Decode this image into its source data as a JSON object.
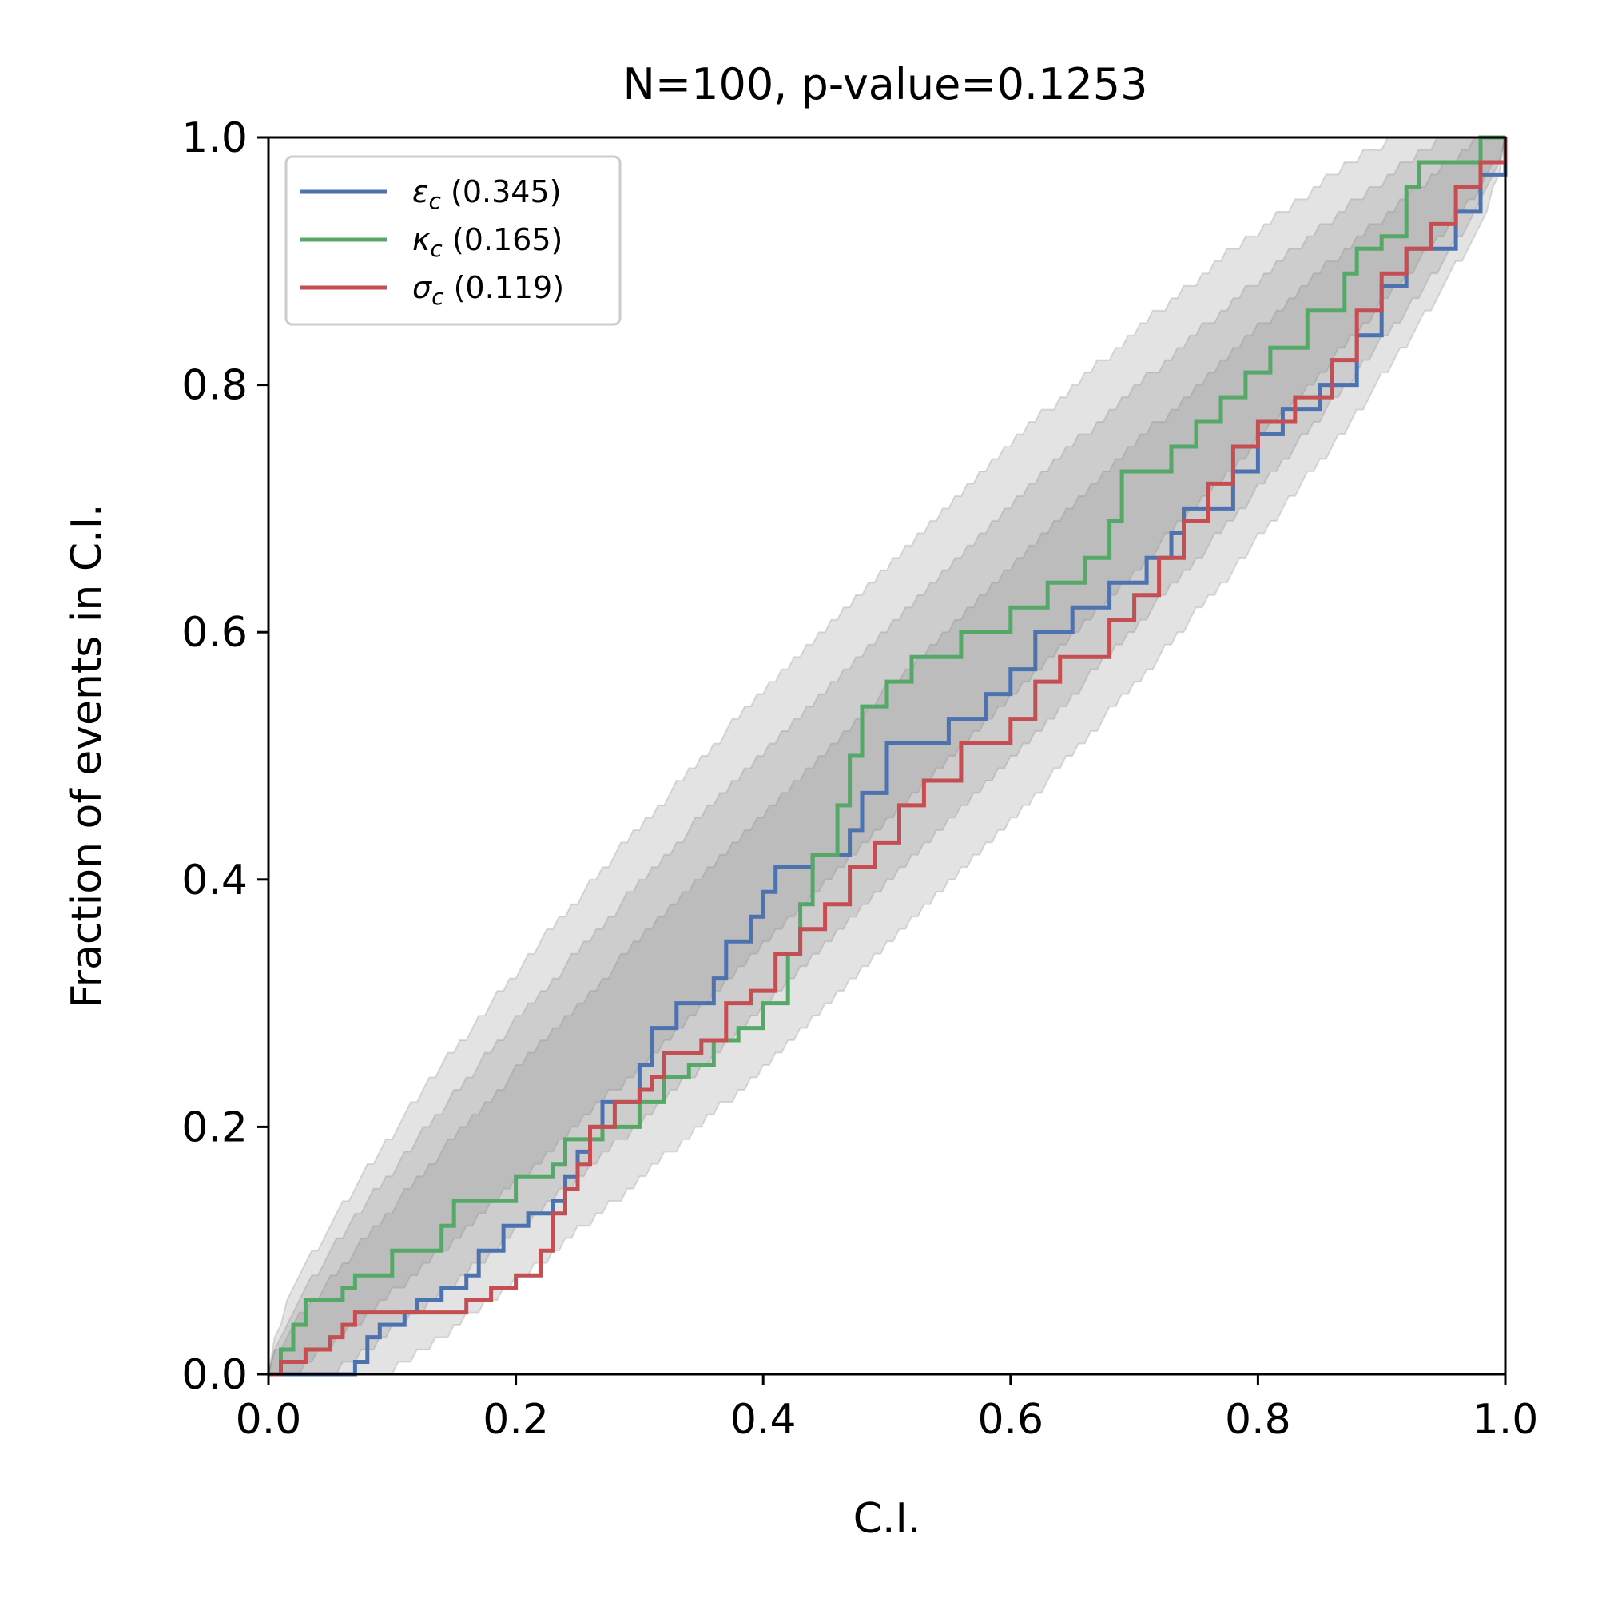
{
  "chart_data": {
    "type": "line",
    "title": "N=100, p-value=0.1253",
    "xlabel": "C.I.",
    "ylabel": "Fraction of events in C.I.",
    "xlim": [
      0.0,
      1.0
    ],
    "ylim": [
      0.0,
      1.0
    ],
    "xticks": [
      "0.0",
      "0.2",
      "0.4",
      "0.6",
      "0.8",
      "1.0"
    ],
    "yticks": [
      "0.0",
      "0.2",
      "0.4",
      "0.6",
      "0.8",
      "1.0"
    ],
    "grid": false,
    "legend_position": "upper-left",
    "bands": {
      "description_levels": [
        "1-sigma",
        "2-sigma",
        "3-sigma"
      ],
      "color": "#808080"
    },
    "series": [
      {
        "name": "ε_c (0.345)",
        "label_symbol": "ε",
        "label_subscript": "c",
        "label_value": "(0.345)",
        "color": "#4c72b0",
        "points": [
          [
            0.0,
            0.0
          ],
          [
            0.07,
            0.01
          ],
          [
            0.08,
            0.03
          ],
          [
            0.09,
            0.04
          ],
          [
            0.11,
            0.05
          ],
          [
            0.12,
            0.06
          ],
          [
            0.14,
            0.07
          ],
          [
            0.16,
            0.08
          ],
          [
            0.17,
            0.1
          ],
          [
            0.19,
            0.12
          ],
          [
            0.21,
            0.13
          ],
          [
            0.23,
            0.14
          ],
          [
            0.24,
            0.16
          ],
          [
            0.25,
            0.18
          ],
          [
            0.26,
            0.2
          ],
          [
            0.27,
            0.22
          ],
          [
            0.3,
            0.25
          ],
          [
            0.31,
            0.28
          ],
          [
            0.33,
            0.3
          ],
          [
            0.36,
            0.32
          ],
          [
            0.37,
            0.35
          ],
          [
            0.39,
            0.37
          ],
          [
            0.4,
            0.39
          ],
          [
            0.41,
            0.41
          ],
          [
            0.44,
            0.42
          ],
          [
            0.47,
            0.44
          ],
          [
            0.48,
            0.47
          ],
          [
            0.5,
            0.51
          ],
          [
            0.55,
            0.53
          ],
          [
            0.58,
            0.55
          ],
          [
            0.6,
            0.57
          ],
          [
            0.62,
            0.6
          ],
          [
            0.65,
            0.62
          ],
          [
            0.68,
            0.64
          ],
          [
            0.71,
            0.66
          ],
          [
            0.73,
            0.68
          ],
          [
            0.74,
            0.7
          ],
          [
            0.78,
            0.73
          ],
          [
            0.8,
            0.76
          ],
          [
            0.82,
            0.78
          ],
          [
            0.85,
            0.8
          ],
          [
            0.88,
            0.84
          ],
          [
            0.9,
            0.88
          ],
          [
            0.92,
            0.91
          ],
          [
            0.96,
            0.94
          ],
          [
            0.98,
            0.97
          ],
          [
            1.0,
            1.0
          ]
        ]
      },
      {
        "name": "κ_c (0.165)",
        "label_symbol": "κ",
        "label_subscript": "c",
        "label_value": "(0.165)",
        "color": "#55a868",
        "points": [
          [
            0.0,
            0.0
          ],
          [
            0.01,
            0.02
          ],
          [
            0.02,
            0.04
          ],
          [
            0.03,
            0.06
          ],
          [
            0.06,
            0.07
          ],
          [
            0.07,
            0.08
          ],
          [
            0.1,
            0.1
          ],
          [
            0.14,
            0.12
          ],
          [
            0.15,
            0.14
          ],
          [
            0.2,
            0.16
          ],
          [
            0.23,
            0.17
          ],
          [
            0.24,
            0.19
          ],
          [
            0.26,
            0.19
          ],
          [
            0.27,
            0.2
          ],
          [
            0.3,
            0.22
          ],
          [
            0.32,
            0.24
          ],
          [
            0.34,
            0.25
          ],
          [
            0.36,
            0.27
          ],
          [
            0.38,
            0.28
          ],
          [
            0.4,
            0.3
          ],
          [
            0.42,
            0.34
          ],
          [
            0.43,
            0.38
          ],
          [
            0.44,
            0.42
          ],
          [
            0.46,
            0.46
          ],
          [
            0.47,
            0.5
          ],
          [
            0.48,
            0.54
          ],
          [
            0.5,
            0.56
          ],
          [
            0.52,
            0.58
          ],
          [
            0.56,
            0.6
          ],
          [
            0.6,
            0.62
          ],
          [
            0.63,
            0.64
          ],
          [
            0.66,
            0.66
          ],
          [
            0.68,
            0.69
          ],
          [
            0.69,
            0.73
          ],
          [
            0.73,
            0.75
          ],
          [
            0.75,
            0.77
          ],
          [
            0.77,
            0.79
          ],
          [
            0.79,
            0.81
          ],
          [
            0.81,
            0.83
          ],
          [
            0.84,
            0.86
          ],
          [
            0.87,
            0.89
          ],
          [
            0.88,
            0.91
          ],
          [
            0.9,
            0.92
          ],
          [
            0.92,
            0.96
          ],
          [
            0.93,
            0.98
          ],
          [
            0.98,
            1.0
          ],
          [
            1.0,
            1.0
          ]
        ]
      },
      {
        "name": "σ_c (0.119)",
        "label_symbol": "σ",
        "label_subscript": "c",
        "label_value": "(0.119)",
        "color": "#c44e52",
        "points": [
          [
            0.0,
            0.0
          ],
          [
            0.01,
            0.01
          ],
          [
            0.03,
            0.02
          ],
          [
            0.05,
            0.03
          ],
          [
            0.06,
            0.04
          ],
          [
            0.07,
            0.05
          ],
          [
            0.1,
            0.05
          ],
          [
            0.16,
            0.06
          ],
          [
            0.18,
            0.07
          ],
          [
            0.2,
            0.08
          ],
          [
            0.22,
            0.1
          ],
          [
            0.23,
            0.13
          ],
          [
            0.24,
            0.15
          ],
          [
            0.25,
            0.17
          ],
          [
            0.26,
            0.2
          ],
          [
            0.28,
            0.22
          ],
          [
            0.3,
            0.23
          ],
          [
            0.31,
            0.24
          ],
          [
            0.32,
            0.26
          ],
          [
            0.35,
            0.27
          ],
          [
            0.37,
            0.3
          ],
          [
            0.39,
            0.31
          ],
          [
            0.41,
            0.34
          ],
          [
            0.43,
            0.36
          ],
          [
            0.45,
            0.38
          ],
          [
            0.47,
            0.41
          ],
          [
            0.49,
            0.43
          ],
          [
            0.51,
            0.46
          ],
          [
            0.53,
            0.48
          ],
          [
            0.56,
            0.51
          ],
          [
            0.6,
            0.53
          ],
          [
            0.62,
            0.56
          ],
          [
            0.64,
            0.58
          ],
          [
            0.68,
            0.61
          ],
          [
            0.7,
            0.63
          ],
          [
            0.72,
            0.66
          ],
          [
            0.74,
            0.69
          ],
          [
            0.76,
            0.72
          ],
          [
            0.78,
            0.75
          ],
          [
            0.8,
            0.77
          ],
          [
            0.83,
            0.79
          ],
          [
            0.86,
            0.82
          ],
          [
            0.88,
            0.86
          ],
          [
            0.9,
            0.89
          ],
          [
            0.92,
            0.91
          ],
          [
            0.94,
            0.93
          ],
          [
            0.96,
            0.96
          ],
          [
            0.98,
            0.98
          ],
          [
            1.0,
            1.0
          ]
        ]
      }
    ]
  }
}
